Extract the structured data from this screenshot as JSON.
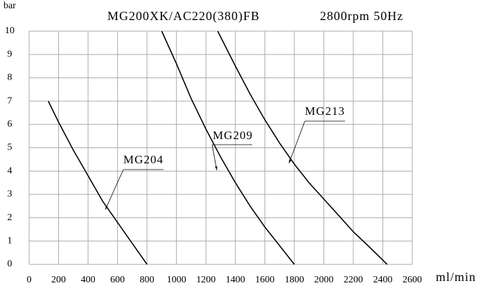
{
  "chart_data": {
    "type": "line",
    "title": "MG200XK/AC220(380)FB",
    "subtitle": "2800rpm 50Hz",
    "y_label": "bar",
    "x_label": "ml/min",
    "xlim": [
      0,
      2600
    ],
    "ylim": [
      0,
      10
    ],
    "xticks": [
      0,
      200,
      400,
      600,
      800,
      1000,
      1200,
      1400,
      1600,
      1800,
      2000,
      2200,
      2400,
      2600
    ],
    "yticks": [
      0,
      1,
      2,
      3,
      4,
      5,
      6,
      7,
      8,
      9,
      10
    ],
    "grid": true,
    "series": [
      {
        "name": "MG204",
        "color": "#000000",
        "x": [
          130,
          200,
          300,
          400,
          500,
          600,
          700,
          800
        ],
        "values": [
          7,
          6.1,
          4.9,
          3.8,
          2.7,
          1.8,
          0.9,
          0
        ]
      },
      {
        "name": "MG209",
        "color": "#000000",
        "x": [
          900,
          1000,
          1100,
          1200,
          1300,
          1400,
          1500,
          1600,
          1700,
          1800
        ],
        "values": [
          10,
          8.6,
          7.1,
          5.8,
          4.6,
          3.5,
          2.5,
          1.6,
          0.8,
          0
        ]
      },
      {
        "name": "MG213",
        "color": "#000000",
        "x": [
          1280,
          1400,
          1500,
          1600,
          1700,
          1800,
          1900,
          2000,
          2100,
          2200,
          2300,
          2430
        ],
        "values": [
          10,
          8.5,
          7.3,
          6.2,
          5.2,
          4.3,
          3.5,
          2.8,
          2.1,
          1.4,
          0.8,
          0
        ]
      }
    ]
  }
}
